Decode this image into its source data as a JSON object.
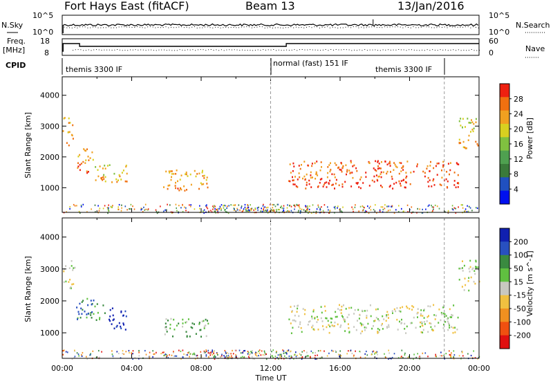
{
  "header": {
    "station": "Fort Hays East (fitACF)",
    "beam": "Beam 13",
    "date": "13/Jan/2016"
  },
  "strip": {
    "nsky_label": "N.Sky",
    "nsky_ticks": [
      "10^5",
      "10^0"
    ],
    "nsearch_label": "N.Search",
    "nsearch_ticks": [
      "10^5",
      "10^0"
    ],
    "freq_label": "Freq.",
    "freq_unit": "[MHz]",
    "freq_ticks": [
      "18",
      "8"
    ],
    "nave_label": "Nave",
    "nave_ticks": [
      "60",
      "0"
    ],
    "cpid_label": "CPID",
    "cpid_segments": [
      "themis 3300 IF",
      "normal (fast) 151 IF",
      "themis 3300 IF"
    ]
  },
  "colors": {
    "power_scale": [
      "#0010ee",
      "#2050c0",
      "#3a7a3a",
      "#4fa050",
      "#80c040",
      "#d8d020",
      "#f0a020",
      "#f07010",
      "#ee2010"
    ],
    "velocity_scale": [
      "#1020b0",
      "#2850c0",
      "#3a8a40",
      "#60c040",
      "#c8c8c0",
      "#f0c040",
      "#f09020",
      "#f05010",
      "#e01010"
    ]
  },
  "chart_data": [
    {
      "type": "heatmap",
      "ylabel": "Slant Range [km]",
      "y_ticks": [
        "1000",
        "2000",
        "3000",
        "4000"
      ],
      "ylim": [
        200,
        4600
      ],
      "colorbar_label": "Power [dB]",
      "colorbar_ticks": [
        "4",
        "8",
        "12",
        "16",
        "20",
        "24",
        "28"
      ],
      "x_ticks": [
        "00:00",
        "04:00",
        "08:00",
        "12:00",
        "16:00",
        "20:00",
        "00:00"
      ],
      "xlim": [
        0,
        24
      ],
      "regions": [
        {
          "t0": 0.0,
          "t1": 0.6,
          "r0": 2400,
          "r1": 3300,
          "level": 6
        },
        {
          "t0": 0.8,
          "t1": 1.8,
          "r0": 1500,
          "r1": 2300,
          "level": 6
        },
        {
          "t0": 1.8,
          "t1": 3.8,
          "r0": 1200,
          "r1": 1800,
          "level": 5
        },
        {
          "t0": 5.8,
          "t1": 8.4,
          "r0": 900,
          "r1": 1600,
          "level": 6
        },
        {
          "t0": 13.0,
          "t1": 22.8,
          "r0": 1000,
          "r1": 1900,
          "level": 7
        },
        {
          "t0": 22.8,
          "t1": 24.0,
          "r0": 2300,
          "r1": 3300,
          "level": 5
        }
      ]
    },
    {
      "type": "heatmap",
      "ylabel": "Slant Range [km]",
      "y_ticks": [
        "1000",
        "2000",
        "3000",
        "4000"
      ],
      "ylim": [
        200,
        4600
      ],
      "colorbar_label": "Velocity [m s^-1]",
      "colorbar_ticks": [
        "200",
        "100",
        "50",
        "15",
        "-15",
        "-50",
        "-100",
        "-200"
      ],
      "x_ticks": [
        "00:00",
        "04:00",
        "08:00",
        "12:00",
        "16:00",
        "20:00",
        "00:00"
      ],
      "xlabel": "Time UT",
      "xlim": [
        0,
        24
      ],
      "regions": [
        {
          "t0": 0.0,
          "t1": 0.7,
          "r0": 2400,
          "r1": 3300,
          "level": 4
        },
        {
          "t0": 0.8,
          "t1": 2.6,
          "r0": 1400,
          "r1": 2100,
          "level": 2
        },
        {
          "t0": 2.6,
          "t1": 3.8,
          "r0": 1100,
          "r1": 1800,
          "level": 0
        },
        {
          "t0": 5.8,
          "t1": 8.4,
          "r0": 900,
          "r1": 1500,
          "level": 3
        },
        {
          "t0": 13.0,
          "t1": 22.8,
          "r0": 1000,
          "r1": 1900,
          "level": 4
        },
        {
          "t0": 22.8,
          "t1": 24.0,
          "r0": 2300,
          "r1": 3300,
          "level": 4
        }
      ]
    }
  ]
}
